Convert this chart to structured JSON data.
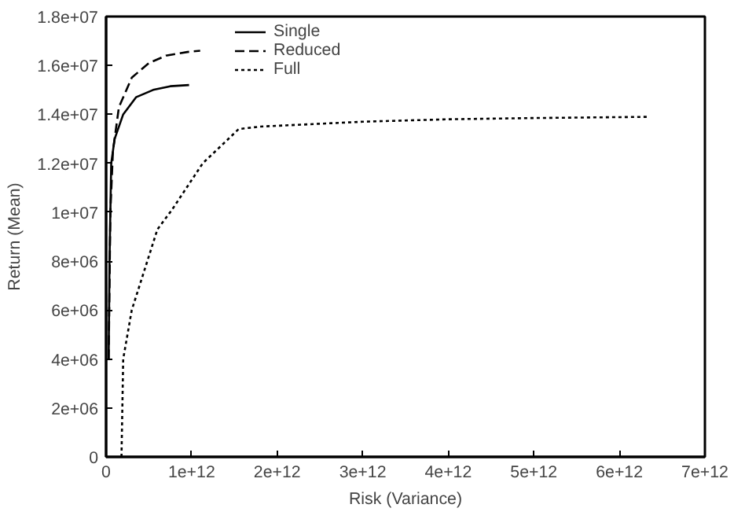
{
  "chart_data": {
    "type": "line",
    "xlabel": "Risk (Variance)",
    "ylabel": "Return (Mean)",
    "xlim": [
      0,
      7000000000000.0
    ],
    "ylim": [
      0,
      18000000.0
    ],
    "xticks": [
      0,
      {
        "value": 1000000000000.0,
        "label": "1e+12"
      },
      {
        "value": 2000000000000.0,
        "label": "2e+12"
      },
      {
        "value": 3000000000000.0,
        "label": "3e+12"
      },
      {
        "value": 4000000000000.0,
        "label": "4e+12"
      },
      {
        "value": 5000000000000.0,
        "label": "5e+12"
      },
      {
        "value": 6000000000000.0,
        "label": "6e+12"
      },
      {
        "value": 7000000000000.0,
        "label": "7e+12"
      }
    ],
    "yticks": [
      0,
      {
        "value": 2000000.0,
        "label": "2e+06"
      },
      {
        "value": 4000000.0,
        "label": "4e+06"
      },
      {
        "value": 6000000.0,
        "label": "6e+06"
      },
      {
        "value": 8000000.0,
        "label": "8e+06"
      },
      {
        "value": 10000000.0,
        "label": "1e+07"
      },
      {
        "value": 12000000.0,
        "label": "1.2e+07"
      },
      {
        "value": 14000000.0,
        "label": "1.4e+07"
      },
      {
        "value": 16000000.0,
        "label": "1.6e+07"
      },
      {
        "value": 18000000.0,
        "label": "1.8e+07"
      }
    ],
    "grid": false,
    "legend": "top left",
    "series": [
      {
        "name": "Single",
        "color": "#000000",
        "line_style": "solid",
        "x": [
          30000000000.0,
          40000000000.0,
          60000000000.0,
          100000000000.0,
          200000000000.0,
          350000000000.0,
          550000000000.0,
          750000000000.0,
          970000000000.0
        ],
        "values": [
          4000000.0,
          8000000.0,
          12000000.0,
          13000000.0,
          14000000.0,
          14700000.0,
          15000000.0,
          15150000.0,
          15200000.0
        ]
      },
      {
        "name": "Reduced",
        "color": "#000000",
        "line_style": "dashed",
        "x": [
          30000000000.0,
          50000000000.0,
          80000000000.0,
          150000000000.0,
          300000000000.0,
          500000000000.0,
          700000000000.0,
          950000000000.0,
          1100000000000.0
        ],
        "values": [
          4000000.0,
          10000000.0,
          12500000.0,
          14300000.0,
          15500000.0,
          16100000.0,
          16400000.0,
          16550000.0,
          16600000.0
        ]
      },
      {
        "name": "Full",
        "color": "#000000",
        "line_style": "dotted",
        "x": [
          180000000000.0,
          200000000000.0,
          300000000000.0,
          600000000000.0,
          770000000000.0,
          1130000000000.0,
          1550000000000.0,
          1800000000000.0,
          3000000000000.0,
          4000000000000.0,
          5000000000000.0,
          6350000000000.0
        ],
        "values": [
          0,
          4000000.0,
          6000000.0,
          9300000.0,
          10100000.0,
          12000000.0,
          13400000.0,
          13500000.0,
          13700000.0,
          13800000.0,
          13850000.0,
          13900000.0
        ]
      }
    ]
  }
}
